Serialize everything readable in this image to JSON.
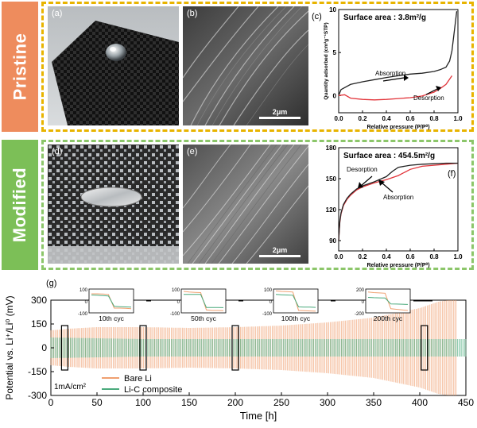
{
  "row_pristine": {
    "side_label": "Pristine"
  },
  "row_modified": {
    "side_label": "Modified"
  },
  "panel_a": {
    "label": "(a)"
  },
  "panel_b": {
    "label": "(b)",
    "scale": "2μm"
  },
  "panel_d": {
    "label": "(d)"
  },
  "panel_e": {
    "label": "(e)",
    "scale": "2μm"
  },
  "panel_c": {
    "label": "(c)",
    "chart_data": {
      "type": "line",
      "annotation": "Surface area : 3.8m²/g",
      "xlabel": "Relative pressure (P/P⁰)",
      "ylabel": "Quantity adsorbed (cm³g⁻¹STP)",
      "xlim": [
        0,
        1.0
      ],
      "ylim": [
        -2,
        10
      ],
      "xticks": [
        "0.0",
        "0.2",
        "0.4",
        "0.6",
        "0.8",
        "1.0"
      ],
      "yticks": [
        "0",
        "5",
        "10"
      ],
      "series": [
        {
          "name": "Absorption",
          "color": "#222222",
          "x": [
            0.0,
            0.02,
            0.1,
            0.2,
            0.3,
            0.4,
            0.5,
            0.6,
            0.7,
            0.8,
            0.85,
            0.9,
            0.93,
            0.95,
            0.97,
            0.99
          ],
          "y": [
            0.0,
            0.7,
            1.3,
            1.6,
            1.85,
            2.1,
            2.3,
            2.5,
            2.6,
            2.8,
            3.0,
            3.3,
            4.0,
            5.2,
            7.5,
            9.8
          ]
        },
        {
          "name": "Desorption",
          "color": "#e2343a",
          "x": [
            0.0,
            0.05,
            0.1,
            0.2,
            0.3,
            0.4,
            0.5,
            0.6,
            0.7,
            0.8,
            0.85,
            0.9,
            0.95
          ],
          "y": [
            0.0,
            0.1,
            -0.3,
            -0.45,
            -0.5,
            -0.45,
            -0.35,
            -0.25,
            -0.05,
            0.4,
            0.8,
            1.3,
            2.3
          ]
        }
      ],
      "annotations": [
        "Absorption",
        "Desorption"
      ]
    }
  },
  "panel_f": {
    "label": "(f)",
    "chart_data": {
      "type": "line",
      "annotation": "Surface area : 454.5m²/g",
      "xlabel": "Relative pressure (P/P⁰)",
      "ylabel": "",
      "xlim": [
        0,
        1.0
      ],
      "ylim": [
        80,
        180
      ],
      "xticks": [
        "0.0",
        "0.2",
        "0.4",
        "0.6",
        "0.8",
        "1.0"
      ],
      "yticks": [
        "90",
        "120",
        "150",
        "180"
      ],
      "series": [
        {
          "name": "Absorption",
          "color": "#e2343a",
          "x": [
            0.0,
            0.005,
            0.01,
            0.02,
            0.04,
            0.07,
            0.1,
            0.15,
            0.2,
            0.3,
            0.4,
            0.5,
            0.6,
            0.7,
            0.8,
            0.9,
            1.0
          ],
          "y": [
            90,
            100,
            108,
            116,
            124,
            130,
            134,
            139,
            142,
            146,
            149,
            153,
            159,
            162,
            163,
            164,
            165
          ]
        },
        {
          "name": "Desorption",
          "color": "#222222",
          "x": [
            0.0,
            0.005,
            0.01,
            0.02,
            0.04,
            0.07,
            0.1,
            0.15,
            0.2,
            0.3,
            0.4,
            0.45,
            0.5,
            0.6,
            0.7,
            0.8,
            0.9,
            1.0
          ],
          "y": [
            90,
            101,
            109,
            117,
            125,
            131,
            135,
            140,
            143,
            147,
            152,
            157,
            161,
            163,
            164,
            164.5,
            165,
            165
          ]
        }
      ],
      "annotations": [
        "Desorption",
        "Absorption"
      ]
    }
  },
  "panel_g": {
    "label": "(g)",
    "chart_data": {
      "type": "line",
      "xlabel": "Time [h]",
      "ylabel": "Potential vs. Li⁺/Li⁰ (mV)",
      "xlim": [
        0,
        450
      ],
      "ylim": [
        -300,
        300
      ],
      "xticks": [
        "0",
        "50",
        "100",
        "150",
        "200",
        "250",
        "300",
        "350",
        "400",
        "450"
      ],
      "yticks": [
        "-300",
        "-150",
        "0",
        "150",
        "300"
      ],
      "yticks_minor": [
        "-300",
        "-150",
        "0",
        "150",
        "300"
      ],
      "condition": "1mA/cm²",
      "series": [
        {
          "name": "Bare Li",
          "color": "#f0a070",
          "envelope_t": [
            0,
            20,
            50,
            100,
            150,
            200,
            250,
            300,
            350,
            400,
            420,
            430,
            440
          ],
          "envelope_amp": [
            110,
            120,
            130,
            130,
            125,
            130,
            140,
            160,
            190,
            250,
            290,
            300,
            300
          ]
        },
        {
          "name": "Li-C composite",
          "color": "#4aaa7c",
          "envelope_t": [
            0,
            50,
            100,
            150,
            200,
            250,
            300,
            350,
            400,
            440
          ],
          "envelope_amp": [
            65,
            60,
            55,
            55,
            55,
            55,
            55,
            55,
            55,
            55
          ]
        }
      ],
      "highlight_times": [
        15,
        100,
        200,
        405
      ],
      "insets": [
        {
          "label": "10th cyc",
          "yticks": [
            "100",
            "0",
            "-100"
          ],
          "bare": [
            60,
            60,
            58,
            55,
            -60,
            -60,
            -62,
            -65
          ],
          "composite": [
            50,
            48,
            45,
            42,
            -45,
            -48,
            -50,
            -52
          ]
        },
        {
          "label": "50th cyc",
          "yticks": [
            "100",
            "0",
            "-100"
          ],
          "bare": [
            80,
            75,
            72,
            70,
            -75,
            -80,
            -80,
            -82
          ],
          "composite": [
            55,
            55,
            55,
            55,
            -55,
            -55,
            -55,
            -56
          ]
        },
        {
          "label": "100th cyc",
          "yticks": [
            "100",
            "0",
            "-100"
          ],
          "bare": [
            85,
            80,
            78,
            75,
            -80,
            -82,
            -84,
            -86
          ],
          "composite": [
            55,
            52,
            50,
            48,
            -50,
            -52,
            -52,
            -54
          ]
        },
        {
          "label": "200th cyc",
          "yticks": [
            "200",
            "0",
            "-200"
          ],
          "bare": [
            150,
            140,
            135,
            130,
            -130,
            -140,
            -150,
            -160
          ],
          "composite": [
            60,
            55,
            52,
            50,
            -50,
            -52,
            -55,
            -58
          ]
        }
      ],
      "legend": [
        "Bare Li",
        "Li-C composite"
      ]
    }
  }
}
